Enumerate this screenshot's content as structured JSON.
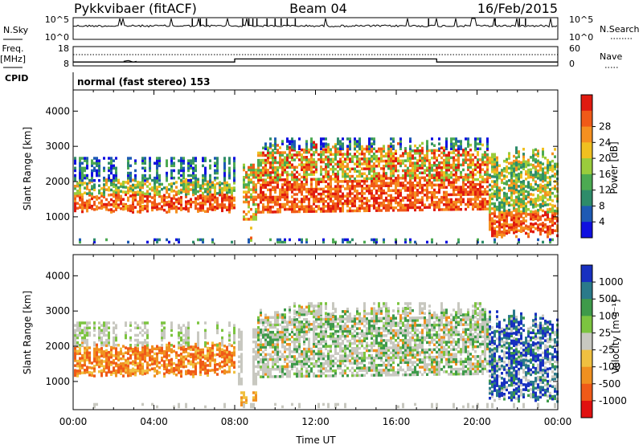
{
  "header": {
    "station": "Pykkvibaer (fitACF)",
    "beam": "Beam 04",
    "date": "16/Feb/2015"
  },
  "status_panels": {
    "nsky": {
      "label": "N.Sky",
      "right_label": "N.Search",
      "ticks_left": [
        "10^5",
        "10^0"
      ],
      "ticks_right": [
        "10^5",
        "10^0"
      ]
    },
    "freq": {
      "label_line1": "Freq.",
      "label_line2": "[MHz]",
      "right_label": "Nave",
      "ticks_left": [
        "18",
        "8"
      ],
      "ticks_right": [
        "60",
        "0"
      ],
      "freq_steps": [
        {
          "from_hour": 0,
          "to_hour": 8,
          "mhz": 10.0
        },
        {
          "from_hour": 8,
          "to_hour": 18,
          "mhz": 11.6
        },
        {
          "from_hour": 18,
          "to_hour": 24,
          "mhz": 10.0
        }
      ]
    },
    "cpid": {
      "label": "CPID",
      "text": "normal (fast stereo) 153"
    }
  },
  "chart_data": [
    {
      "type": "heatmap",
      "name": "power",
      "ylabel": "Slant Range [km]",
      "xlabel": "",
      "xlim": [
        0,
        24
      ],
      "ylim": [
        200,
        4600
      ],
      "yticks": [
        "1000",
        "2000",
        "3000",
        "4000"
      ],
      "colorbar": {
        "label": "Power [dB]",
        "ticks": [
          "4",
          "8",
          "12",
          "16",
          "20",
          "24",
          "28"
        ],
        "colors": [
          "#1010e0",
          "#1e5ab4",
          "#2e8c6a",
          "#4caa52",
          "#9acc3c",
          "#f0c020",
          "#f59020",
          "#f05a18",
          "#e01a10"
        ]
      }
    },
    {
      "type": "heatmap",
      "name": "velocity",
      "ylabel": "Slant Range [km]",
      "xlabel": "Time UT",
      "xlim": [
        0,
        24
      ],
      "ylim": [
        200,
        4600
      ],
      "yticks": [
        "1000",
        "2000",
        "3000",
        "4000"
      ],
      "xticks": [
        "00:00",
        "04:00",
        "08:00",
        "12:00",
        "16:00",
        "20:00",
        "00:00"
      ],
      "colorbar": {
        "label": "Velocity [m s⁻¹]",
        "ticks": [
          "1000",
          "500",
          "100",
          "25",
          "-25",
          "-100",
          "-500",
          "-1000"
        ],
        "colors": [
          "#1830c0",
          "#2a7a8a",
          "#3e9a4a",
          "#7cc440",
          "#c8c8c0",
          "#f0c040",
          "#f09020",
          "#f05a18",
          "#e01010"
        ]
      }
    }
  ]
}
